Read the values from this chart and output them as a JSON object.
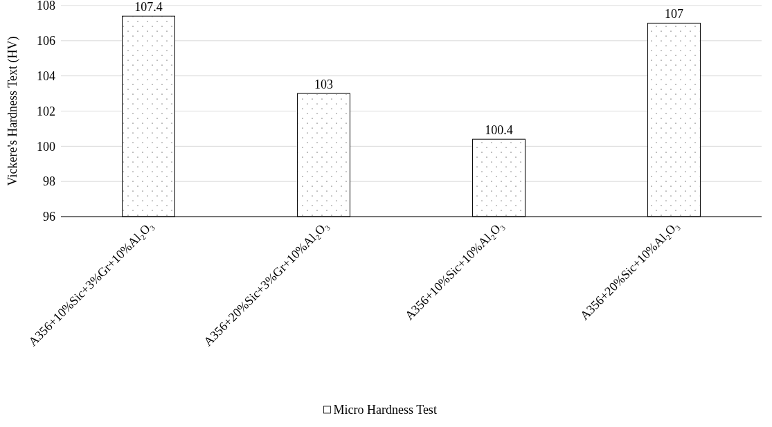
{
  "chart_data": {
    "type": "bar",
    "ylabel": "Vickere's Hardness Text (HV)",
    "categories": [
      "A356+10%Sic+3%Gr+10%Al₂O₃",
      "A356+20%Sic+3%Gr+10%Al₂O₃",
      "A356+10%Sic+10%Al₂O₃",
      "A356+20%Sic+10%Al₂O₃"
    ],
    "series": [
      {
        "name": "Micro Hardness Test",
        "color": "#ffffff",
        "values": [
          107.4,
          103,
          100.4,
          107
        ]
      }
    ],
    "ylim": [
      96,
      108
    ],
    "yticks": [
      96,
      98,
      100,
      102,
      104,
      106,
      108
    ],
    "grid": "y",
    "legend": "bottom",
    "data_labels": true
  }
}
